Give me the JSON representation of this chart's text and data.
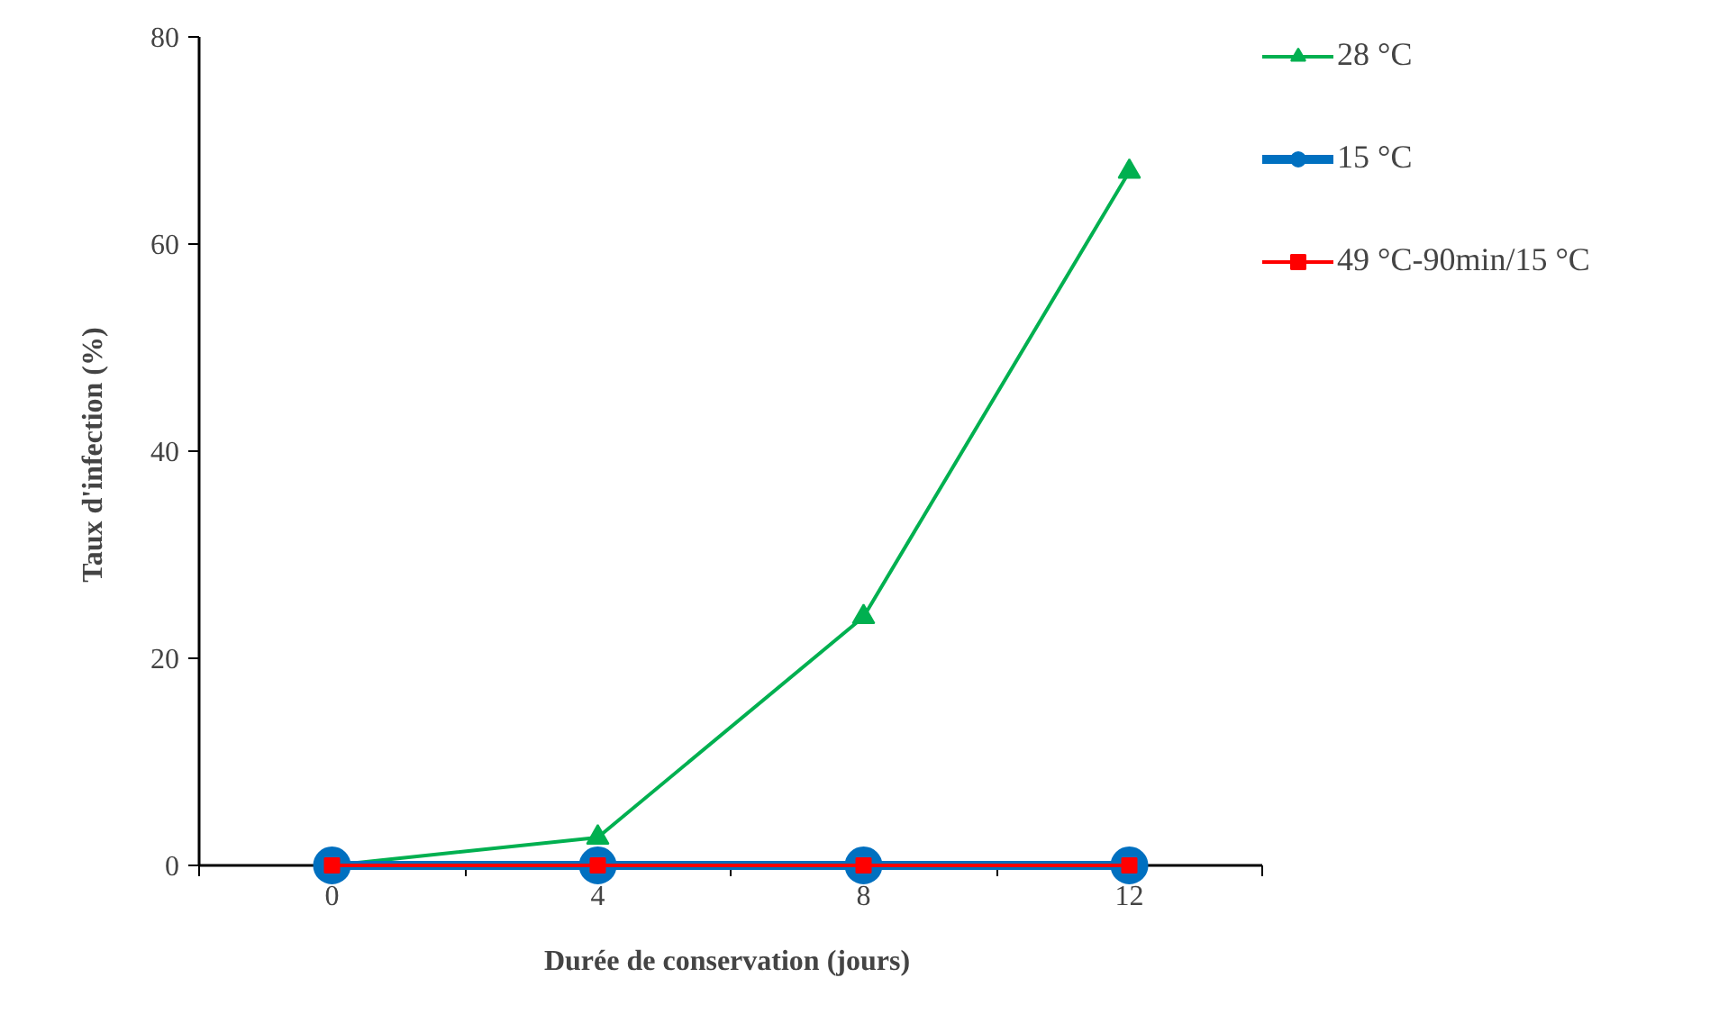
{
  "chart_data": {
    "type": "line",
    "xlabel": "Durée de conservation  (jours)",
    "ylabel": "Taux d'infection  (%)",
    "x": [
      0,
      4,
      8,
      12
    ],
    "xlim": [
      -2,
      14
    ],
    "xticks": [
      {
        "value": -2,
        "label": null
      },
      0,
      {
        "value": 2,
        "label": null
      },
      4,
      {
        "value": 6,
        "label": null
      },
      8,
      {
        "value": 10,
        "label": null
      },
      12,
      {
        "value": 14,
        "label": null
      }
    ],
    "ylim": [
      0,
      80
    ],
    "yticks": [
      0,
      20,
      40,
      60,
      80
    ],
    "grid": false,
    "legend": "top right",
    "series": [
      {
        "name": "28 °C",
        "color": "#00b050",
        "values": [
          0,
          2.7,
          24,
          67
        ],
        "marker": "triangle"
      },
      {
        "name": "15 °C",
        "color": "#0070c0",
        "values": [
          0,
          0,
          0,
          0
        ],
        "marker": "circle"
      },
      {
        "name": "49 °C-90min/15 °C",
        "color": "#ff0000",
        "values": [
          0,
          0,
          0,
          0
        ],
        "marker": "square"
      }
    ]
  }
}
